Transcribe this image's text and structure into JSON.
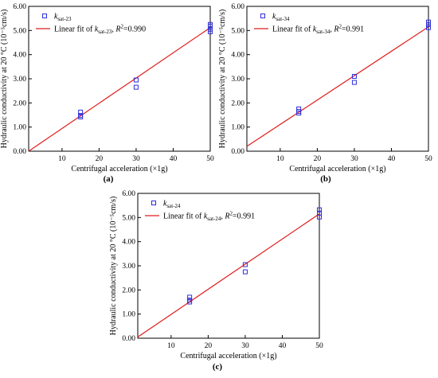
{
  "figure": {
    "panel_labels": [
      "(a)",
      "(b)",
      "(c)"
    ]
  },
  "colors": {
    "points": "#2e2edc",
    "fit_line": "#e11c1c",
    "axis": "#000000"
  },
  "chart_data": [
    {
      "type": "scatter",
      "panel": "(a)",
      "xlabel": "Centrifugal acceleration (×1g)",
      "ylabel": "Hydraulic conductivity at 20 °C (10⁻⁵cm/s)",
      "xlim": [
        1,
        50
      ],
      "ylim": [
        0,
        6
      ],
      "xticks": [
        10,
        20,
        30,
        40,
        50
      ],
      "xtick_labels": [
        "10",
        "20",
        "30",
        "40",
        "50"
      ],
      "yticks": [
        0,
        1,
        2,
        3,
        4,
        5,
        6
      ],
      "ytick_labels": [
        "0.00",
        "1.00",
        "2.00",
        "3.00",
        "4.00",
        "5.00",
        "6.00"
      ],
      "grid": false,
      "legend_position": "top-left",
      "series": [
        {
          "name": "k_sat-23",
          "legend_main": "k",
          "legend_sub": "sat-23",
          "marker": "square",
          "x": [
            15,
            15,
            15,
            30,
            30,
            50,
            50,
            50,
            50
          ],
          "y": [
            1.62,
            1.48,
            1.42,
            2.95,
            2.65,
            5.25,
            5.18,
            5.05,
            4.95
          ]
        },
        {
          "legend_parts": [
            "Linear fit of ",
            "k",
            "sat-23",
            ", ",
            "R",
            "2",
            "=0.990"
          ],
          "type": "line",
          "x": [
            1,
            50
          ],
          "y": [
            0.0,
            5.12
          ]
        }
      ]
    },
    {
      "type": "scatter",
      "panel": "(b)",
      "xlabel": "Centrifugal acceleration (×1g)",
      "ylabel": "Hydraulic conductivity at 20 °C (10⁻⁵cm/s)",
      "xlim": [
        1,
        50
      ],
      "ylim": [
        0,
        6
      ],
      "xticks": [
        10,
        20,
        30,
        40,
        50
      ],
      "xtick_labels": [
        "10",
        "20",
        "30",
        "40",
        "50"
      ],
      "yticks": [
        0,
        1,
        2,
        3,
        4,
        5,
        6
      ],
      "ytick_labels": [
        "0.00",
        "1.00",
        "2.00",
        "3.00",
        "4.00",
        "5.00",
        "6.00"
      ],
      "grid": false,
      "legend_position": "top-left",
      "series": [
        {
          "name": "k_sat-34",
          "legend_main": "k",
          "legend_sub": "sat-34",
          "marker": "square",
          "x": [
            15,
            15,
            15,
            30,
            30,
            50,
            50,
            50
          ],
          "y": [
            1.75,
            1.65,
            1.58,
            3.1,
            2.85,
            5.35,
            5.25,
            5.12
          ]
        },
        {
          "legend_parts": [
            "Linear fit of ",
            "k",
            "sat-34",
            ", ",
            "R",
            "2",
            "=0.991"
          ],
          "type": "line",
          "x": [
            1,
            50
          ],
          "y": [
            0.2,
            5.15
          ]
        }
      ]
    },
    {
      "type": "scatter",
      "panel": "(c)",
      "xlabel": "Centrifugal acceleration (×1g)",
      "ylabel": "Hydraulic conductivity at 20 °C (10⁻⁵cm/s)",
      "xlim": [
        1,
        50
      ],
      "ylim": [
        0,
        6
      ],
      "xticks": [
        10,
        20,
        30,
        40,
        50
      ],
      "xtick_labels": [
        "10",
        "20",
        "30",
        "40",
        "50"
      ],
      "yticks": [
        0,
        1,
        2,
        3,
        4,
        5,
        6
      ],
      "ytick_labels": [
        "0.00",
        "1.00",
        "2.00",
        "3.00",
        "4.00",
        "5.00",
        "6.00"
      ],
      "grid": false,
      "legend_position": "top-left",
      "series": [
        {
          "name": "k_sat-24",
          "legend_main": "k",
          "legend_sub": "sat-24",
          "marker": "square",
          "x": [
            15,
            15,
            15,
            30,
            30,
            50,
            50,
            50
          ],
          "y": [
            1.7,
            1.58,
            1.5,
            3.05,
            2.75,
            5.32,
            5.18,
            5.02
          ]
        },
        {
          "legend_parts": [
            "Linear fit of ",
            "k",
            "sat-24",
            ", ",
            "R",
            "2",
            "=0.991"
          ],
          "type": "line",
          "x": [
            1,
            50
          ],
          "y": [
            0.05,
            5.15
          ]
        }
      ]
    }
  ]
}
